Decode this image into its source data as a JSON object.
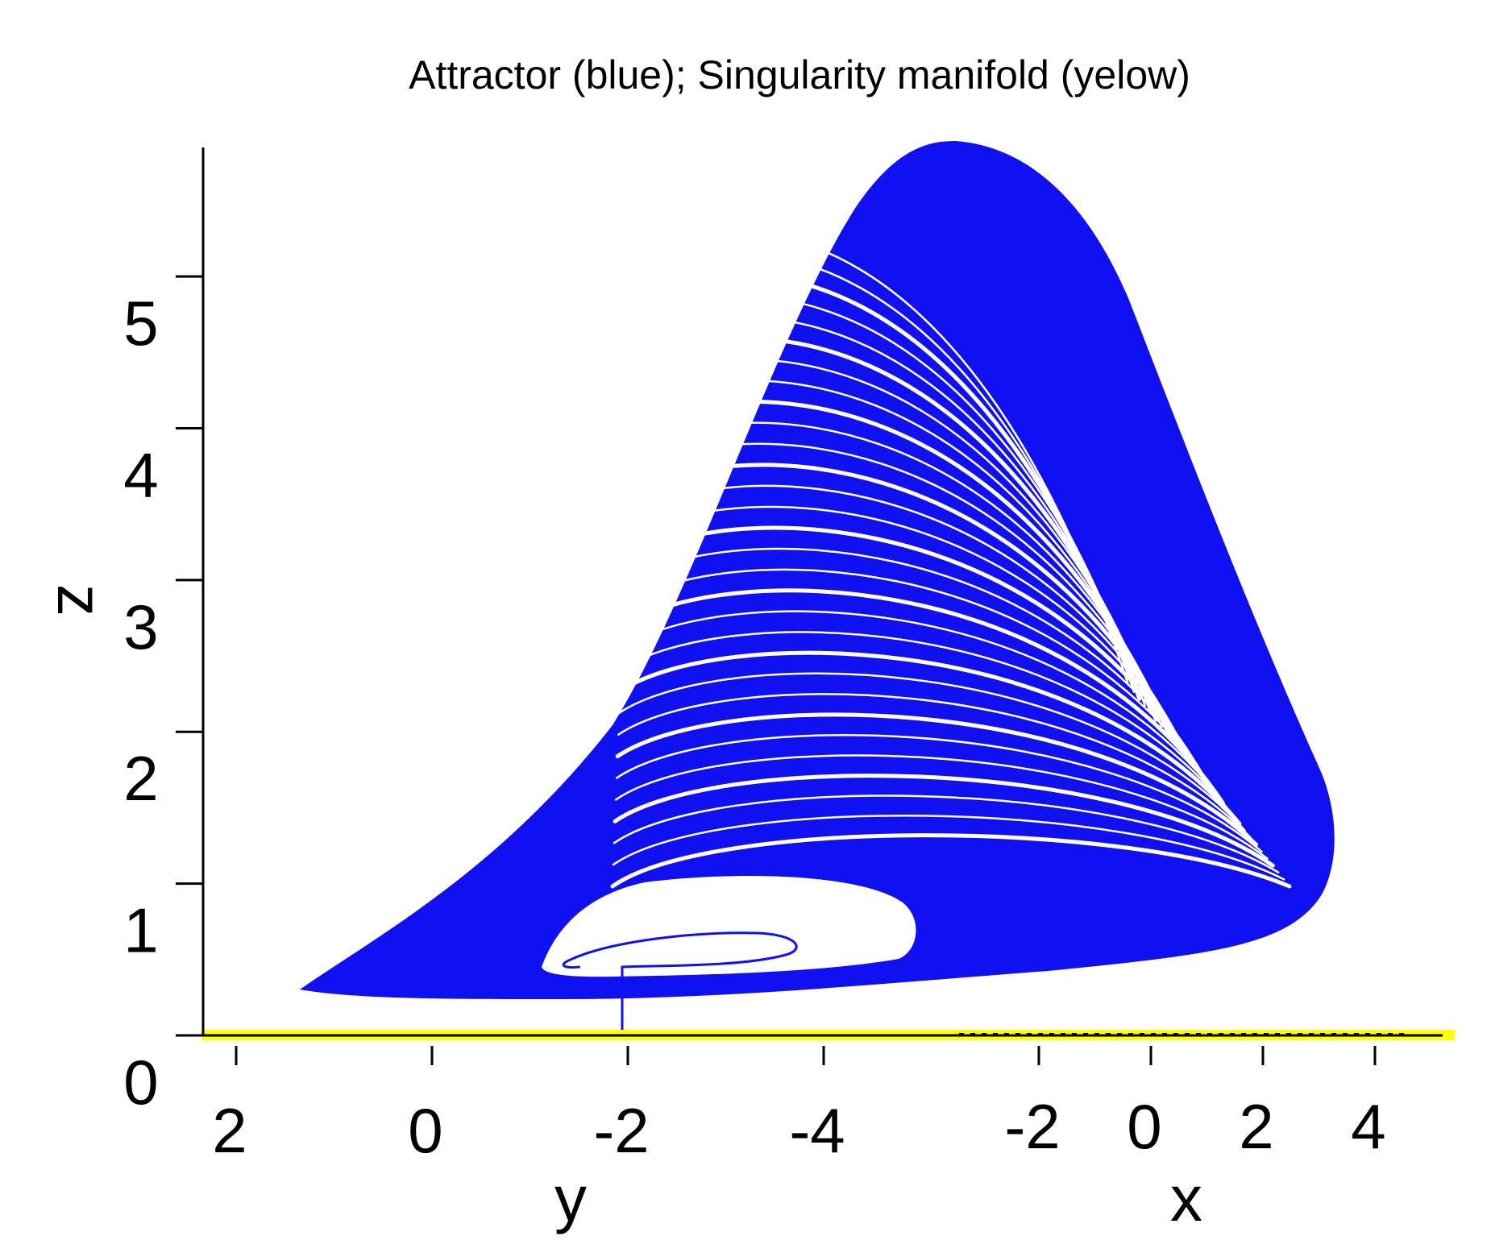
{
  "chart_data": {
    "type": "line",
    "title": "Attractor (blue); Singularity manifold (yelow)",
    "view": "3d-projection",
    "xlabel": "x",
    "ylabel": "y",
    "zlabel": "z",
    "x_ticks": [
      -2,
      0,
      2,
      4
    ],
    "y_ticks": [
      2,
      0,
      -2,
      -4
    ],
    "z_ticks": [
      0,
      1,
      2,
      3,
      4,
      5
    ],
    "zlim": [
      0,
      5.85
    ],
    "grid": false,
    "legend": "none",
    "series": [
      {
        "color": "#1010f0"
      },
      {
        "color": "#ffff00"
      }
    ]
  }
}
